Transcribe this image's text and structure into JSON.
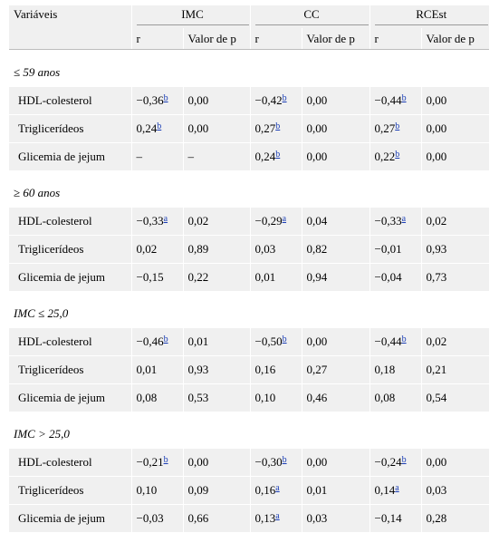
{
  "header": {
    "variables": "Variáveis",
    "groups": [
      "IMC",
      "CC",
      "RCEst"
    ],
    "r": "r",
    "p": "Valor de p"
  },
  "sections": [
    {
      "title": "≤ 59 anos",
      "rows": [
        {
          "label": "HDL-colesterol",
          "cells": [
            [
              "−0,36",
              "b"
            ],
            [
              "0,00",
              ""
            ],
            [
              "−0,42",
              "b"
            ],
            [
              "0,00",
              ""
            ],
            [
              "−0,44",
              "b"
            ],
            [
              "0,00",
              ""
            ]
          ]
        },
        {
          "label": "Triglicerídeos",
          "cells": [
            [
              "0,24",
              "b"
            ],
            [
              "0,00",
              ""
            ],
            [
              "0,27",
              "b"
            ],
            [
              "0,00",
              ""
            ],
            [
              "0,27",
              "b"
            ],
            [
              "0,00",
              ""
            ]
          ]
        },
        {
          "label": "Glicemia de jejum",
          "cells": [
            [
              "–",
              ""
            ],
            [
              "–",
              ""
            ],
            [
              "0,24",
              "b"
            ],
            [
              "0,00",
              ""
            ],
            [
              "0,22",
              "b"
            ],
            [
              "0,00",
              ""
            ]
          ]
        }
      ]
    },
    {
      "title": "≥ 60 anos",
      "rows": [
        {
          "label": "HDL-colesterol",
          "cells": [
            [
              "−0,33",
              "a"
            ],
            [
              "0,02",
              ""
            ],
            [
              "−0,29",
              "a"
            ],
            [
              "0,04",
              ""
            ],
            [
              "−0,33",
              "a"
            ],
            [
              "0,02",
              ""
            ]
          ]
        },
        {
          "label": "Triglicerídeos",
          "cells": [
            [
              "0,02",
              ""
            ],
            [
              "0,89",
              ""
            ],
            [
              "0,03",
              ""
            ],
            [
              "0,82",
              ""
            ],
            [
              "−0,01",
              ""
            ],
            [
              "0,93",
              ""
            ]
          ]
        },
        {
          "label": "Glicemia de jejum",
          "cells": [
            [
              "−0,15",
              ""
            ],
            [
              "0,22",
              ""
            ],
            [
              "0,01",
              ""
            ],
            [
              "0,94",
              ""
            ],
            [
              "−0,04",
              ""
            ],
            [
              "0,73",
              ""
            ]
          ]
        }
      ]
    },
    {
      "title": "IMC ≤ 25,0",
      "rows": [
        {
          "label": "HDL-colesterol",
          "cells": [
            [
              "−0,46",
              "b"
            ],
            [
              "0,01",
              ""
            ],
            [
              "−0,50",
              "b"
            ],
            [
              "0,00",
              ""
            ],
            [
              "−0,44",
              "b"
            ],
            [
              "0,02",
              ""
            ]
          ]
        },
        {
          "label": "Triglicerídeos",
          "cells": [
            [
              "0,01",
              ""
            ],
            [
              "0,93",
              ""
            ],
            [
              "0,16",
              ""
            ],
            [
              "0,27",
              ""
            ],
            [
              "0,18",
              ""
            ],
            [
              "0,21",
              ""
            ]
          ]
        },
        {
          "label": "Glicemia de jejum",
          "cells": [
            [
              "0,08",
              ""
            ],
            [
              "0,53",
              ""
            ],
            [
              "0,10",
              ""
            ],
            [
              "0,46",
              ""
            ],
            [
              "0,08",
              ""
            ],
            [
              "0,54",
              ""
            ]
          ]
        }
      ]
    },
    {
      "title": "IMC > 25,0",
      "rows": [
        {
          "label": "HDL-colesterol",
          "cells": [
            [
              "−0,21",
              "b"
            ],
            [
              "0,00",
              ""
            ],
            [
              "−0,30",
              "b"
            ],
            [
              "0,00",
              ""
            ],
            [
              "−0,24",
              "b"
            ],
            [
              "0,00",
              ""
            ]
          ]
        },
        {
          "label": "Triglicerídeos",
          "cells": [
            [
              "0,10",
              ""
            ],
            [
              "0,09",
              ""
            ],
            [
              "0,16",
              "a"
            ],
            [
              "0,01",
              ""
            ],
            [
              "0,14",
              "a"
            ],
            [
              "0,03",
              ""
            ]
          ]
        },
        {
          "label": "Glicemia de jejum",
          "cells": [
            [
              "−0,03",
              ""
            ],
            [
              "0,66",
              ""
            ],
            [
              "0,13",
              "a"
            ],
            [
              "0,03",
              ""
            ],
            [
              "−0,14",
              ""
            ],
            [
              "0,28",
              ""
            ]
          ]
        }
      ]
    }
  ]
}
